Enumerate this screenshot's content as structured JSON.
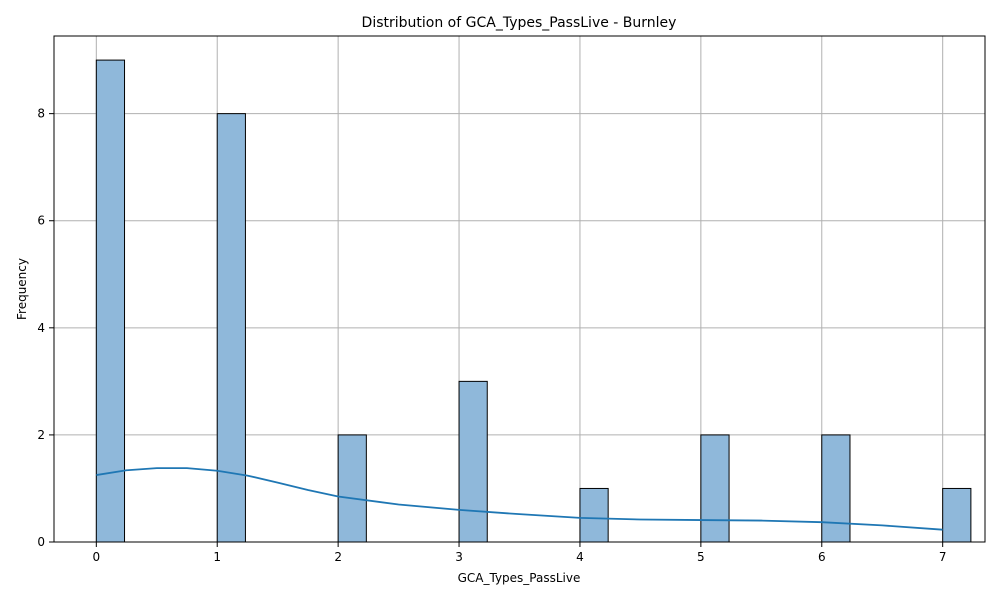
{
  "chart_data": {
    "type": "bar",
    "title": "Distribution of GCA_Types_PassLive - Burnley",
    "xlabel": "GCA_Types_PassLive",
    "ylabel": "Frequency",
    "xlim": [
      -0.35,
      7.35
    ],
    "ylim": [
      0,
      9.45
    ],
    "xticks": [
      0,
      1,
      2,
      3,
      4,
      5,
      6,
      7
    ],
    "yticks": [
      0,
      2,
      4,
      6,
      8
    ],
    "grid": true,
    "bin_width": 0.2333,
    "bars": [
      {
        "x0": 0.0,
        "value": 9
      },
      {
        "x0": 1.0,
        "value": 8
      },
      {
        "x0": 2.0,
        "value": 2
      },
      {
        "x0": 3.0,
        "value": 3
      },
      {
        "x0": 4.0,
        "value": 1
      },
      {
        "x0": 5.0,
        "value": 2
      },
      {
        "x0": 6.0,
        "value": 2
      },
      {
        "x0": 7.0,
        "value": 1
      }
    ],
    "kde": {
      "x": [
        0.0,
        0.25,
        0.5,
        0.75,
        1.0,
        1.25,
        1.5,
        1.75,
        2.0,
        2.5,
        3.0,
        3.5,
        4.0,
        4.5,
        5.0,
        5.5,
        6.0,
        6.5,
        7.0
      ],
      "y": [
        1.25,
        1.34,
        1.38,
        1.38,
        1.33,
        1.24,
        1.11,
        0.97,
        0.85,
        0.7,
        0.6,
        0.52,
        0.45,
        0.42,
        0.41,
        0.4,
        0.37,
        0.31,
        0.23
      ]
    },
    "colors": {
      "bar_fill": "#8fb8da",
      "bar_edge": "#000000",
      "kde_line": "#1f77b4",
      "grid": "#b0b0b0"
    }
  }
}
